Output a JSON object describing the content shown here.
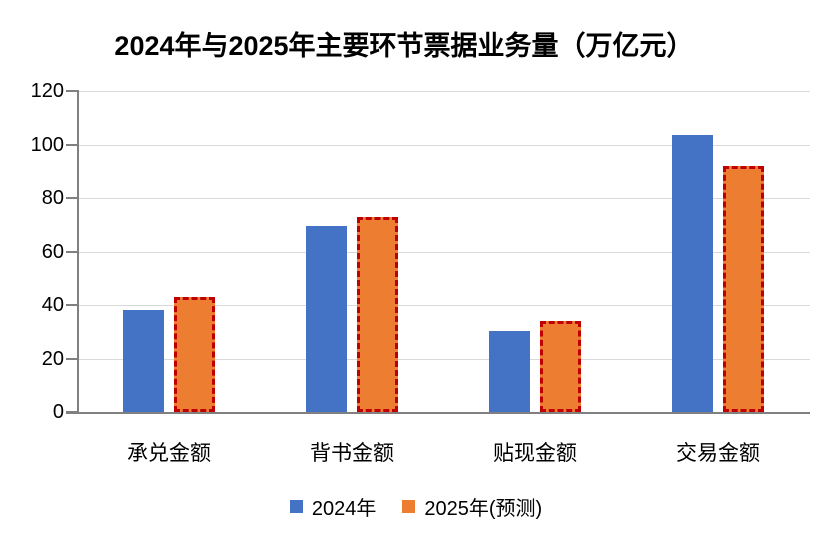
{
  "chart_data": {
    "type": "bar",
    "title": "2024年与2025年主要环节票据业务量（万亿元）",
    "categories": [
      "承兑金额",
      "背书金额",
      "贴现金额",
      "交易金额"
    ],
    "series": [
      {
        "name": "2024年",
        "color": "#4472C4",
        "bar_style": "solid",
        "values": [
          38.3,
          69.7,
          30.4,
          103.5
        ]
      },
      {
        "name": "2025年(预测)",
        "color": "#ED7D31",
        "bar_style": "dashed-outline",
        "outline_color": "#C00000",
        "values": [
          43,
          73,
          34,
          92
        ]
      }
    ],
    "xlabel": "",
    "ylabel": "",
    "ylim": [
      0,
      120
    ],
    "yticks": [
      0,
      20,
      40,
      60,
      80,
      100,
      120
    ],
    "grid": true,
    "gridline_color": "#D9D9D9",
    "axis_color": "#808080",
    "tick_color": "#808080",
    "legend_position": "bottom",
    "unit": "万亿元"
  }
}
